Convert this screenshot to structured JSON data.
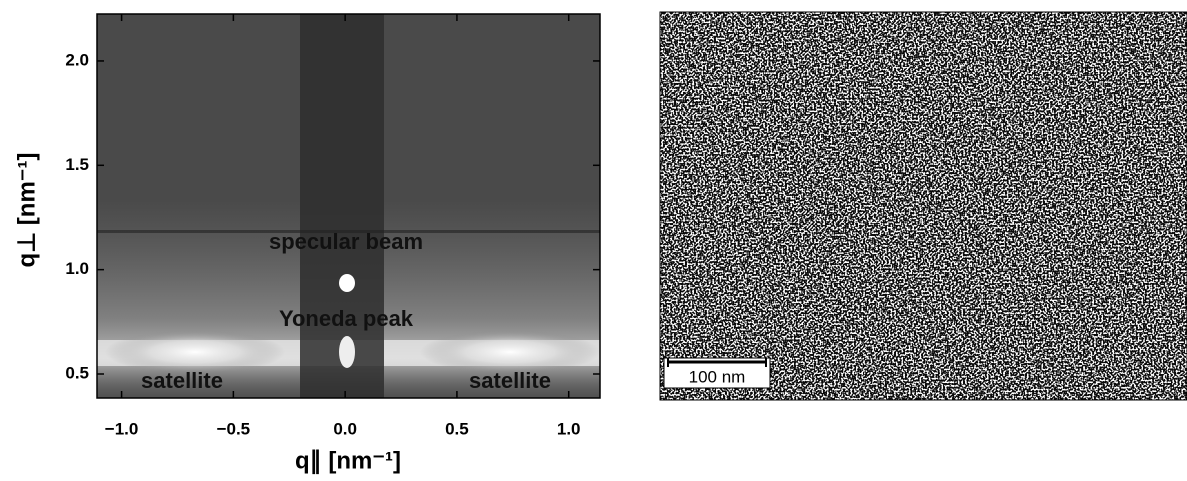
{
  "chart_data": [
    {
      "type": "scattering-map",
      "xlabel": "q∥ [nm⁻¹]",
      "ylabel": "q⊥ [nm⁻¹]",
      "xlim": [
        -1.11,
        1.14
      ],
      "ylim": [
        0.385,
        2.225
      ],
      "xticks": [
        {
          "value": -1.0,
          "label": "−1.0"
        },
        {
          "value": -0.5,
          "label": "−0.5"
        },
        {
          "value": 0.0,
          "label": "0.0"
        },
        {
          "value": 0.5,
          "label": "0.5"
        },
        {
          "value": 1.0,
          "label": "1.0"
        }
      ],
      "yticks": [
        {
          "value": 0.5,
          "label": "0.5"
        },
        {
          "value": 1.0,
          "label": "1.0"
        },
        {
          "value": 1.5,
          "label": "1.5"
        },
        {
          "value": 2.0,
          "label": "2.0"
        }
      ],
      "annotations": [
        "specular beam",
        "Yoneda peak",
        "satellite",
        "satellite"
      ]
    },
    {
      "type": "micrograph",
      "scale_bar": "100 nm"
    }
  ]
}
